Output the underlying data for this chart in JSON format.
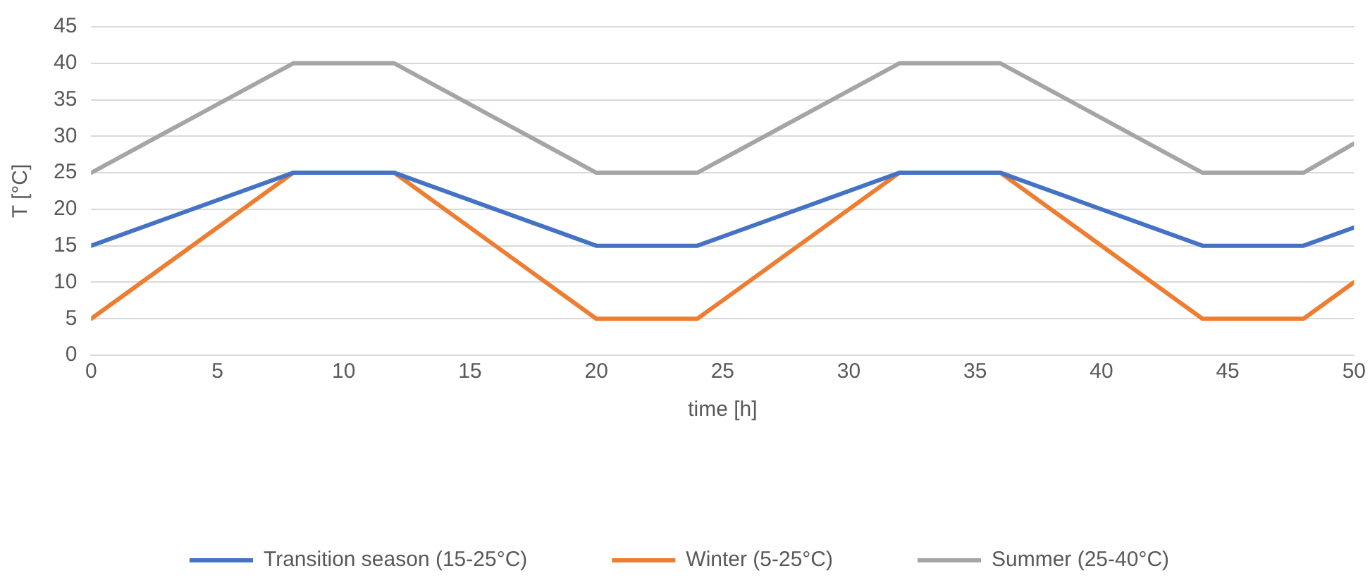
{
  "chart_data": {
    "type": "line",
    "xlabel": "time [h]",
    "ylabel": "T [°C]",
    "x": [
      0,
      8,
      12,
      20,
      24,
      32,
      36,
      44,
      48,
      50
    ],
    "series": [
      {
        "name": "Transition season (15-25°C)",
        "color": "#4472c4",
        "values": [
          15,
          25,
          25,
          15,
          15,
          25,
          25,
          15,
          15,
          17.5
        ]
      },
      {
        "name": "Winter (5-25°C)",
        "color": "#ed7d31",
        "values": [
          5,
          25,
          25,
          5,
          5,
          25,
          25,
          5,
          5,
          10
        ]
      },
      {
        "name": "Summer (25-40°C)",
        "color": "#a5a5a5",
        "values": [
          25,
          40,
          40,
          25,
          25,
          40,
          40,
          25,
          25,
          29
        ]
      }
    ],
    "xlim": [
      0,
      50
    ],
    "xticks": [
      0,
      5,
      10,
      15,
      20,
      25,
      30,
      35,
      40,
      45,
      50
    ],
    "ylim": [
      0,
      45
    ],
    "yticks": [
      0,
      5,
      10,
      15,
      20,
      25,
      30,
      35,
      40,
      45
    ],
    "grid": "y",
    "legend": "bottom",
    "marker": "none",
    "line_style": "solid"
  }
}
